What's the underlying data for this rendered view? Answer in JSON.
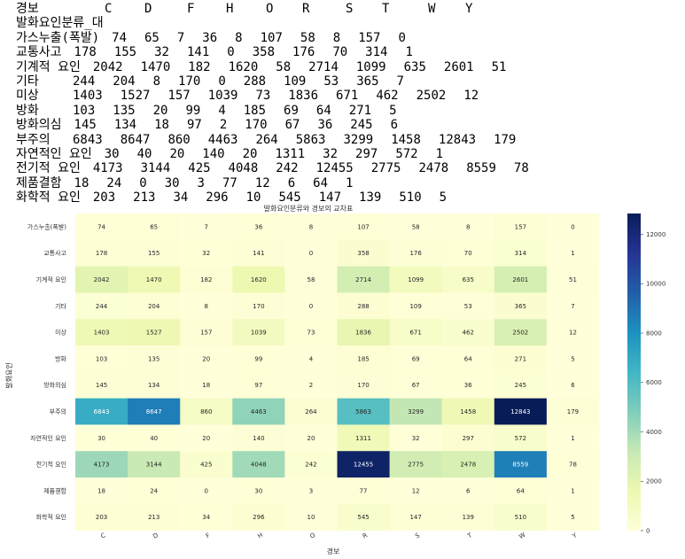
{
  "crosstab_output": {
    "header": [
      "경보",
      "C",
      "D",
      "F",
      "H",
      "O",
      "R",
      "S",
      "T",
      "W",
      "Y"
    ],
    "index_name": "발화요인분류_대",
    "rows": [
      {
        "label": "가스누출(폭발)",
        "values": [
          "74",
          "65",
          "7",
          "36",
          "8",
          "107",
          "58",
          "8",
          "157",
          "0"
        ]
      },
      {
        "label": "교통사고",
        "values": [
          "178",
          "155",
          "32",
          "141",
          "0",
          "358",
          "176",
          "70",
          "314",
          "1"
        ]
      },
      {
        "label": "기계적 요인",
        "values": [
          "2042",
          "1470",
          "182",
          "1620",
          "58",
          "2714",
          "1099",
          "635",
          "2601",
          "51"
        ]
      },
      {
        "label": "기타",
        "values": [
          "244",
          "204",
          "8",
          "170",
          "0",
          "288",
          "109",
          "53",
          "365",
          "7"
        ]
      },
      {
        "label": "미상",
        "values": [
          "1403",
          "1527",
          "157",
          "1039",
          "73",
          "1836",
          "671",
          "462",
          "2502",
          "12"
        ]
      },
      {
        "label": "방화",
        "values": [
          "103",
          "135",
          "20",
          "99",
          "4",
          "185",
          "69",
          "64",
          "271",
          "5"
        ]
      },
      {
        "label": "방화의심",
        "values": [
          "145",
          "134",
          "18",
          "97",
          "2",
          "170",
          "67",
          "36",
          "245",
          "6"
        ]
      },
      {
        "label": "부주의",
        "values": [
          "6843",
          "8647",
          "860",
          "4463",
          "264",
          "5863",
          "3299",
          "1458",
          "12843",
          "179"
        ]
      },
      {
        "label": "자연적인 요인",
        "values": [
          "30",
          "40",
          "20",
          "140",
          "20",
          "1311",
          "32",
          "297",
          "572",
          "1"
        ]
      },
      {
        "label": "전기적 요인",
        "values": [
          "4173",
          "3144",
          "425",
          "4048",
          "242",
          "12455",
          "2775",
          "2478",
          "8559",
          "78"
        ]
      },
      {
        "label": "제품결함",
        "values": [
          "18",
          "24",
          "0",
          "30",
          "3",
          "77",
          "12",
          "6",
          "64",
          "1"
        ]
      },
      {
        "label": "화학적 요인",
        "values": [
          "203",
          "213",
          "34",
          "296",
          "10",
          "545",
          "147",
          "139",
          "510",
          "5"
        ]
      }
    ]
  },
  "chart_data": {
    "type": "heatmap",
    "title": "발화요인분류와 경보의 교차표",
    "xlabel": "경보",
    "ylabel": "발화요인",
    "x": [
      "C",
      "D",
      "F",
      "H",
      "O",
      "R",
      "S",
      "T",
      "W",
      "Y"
    ],
    "y": [
      "가스누출(폭발)",
      "교통사고",
      "기계적 요인",
      "기타",
      "미상",
      "방화",
      "방화의심",
      "부주의",
      "자연적인 요인",
      "전기적 요인",
      "제품결함",
      "화학적 요인"
    ],
    "values": [
      [
        74,
        65,
        7,
        36,
        8,
        107,
        58,
        8,
        157,
        0
      ],
      [
        178,
        155,
        32,
        141,
        0,
        358,
        176,
        70,
        314,
        1
      ],
      [
        2042,
        1470,
        182,
        1620,
        58,
        2714,
        1099,
        635,
        2601,
        51
      ],
      [
        244,
        204,
        8,
        170,
        0,
        288,
        109,
        53,
        365,
        7
      ],
      [
        1403,
        1527,
        157,
        1039,
        73,
        1836,
        671,
        462,
        2502,
        12
      ],
      [
        103,
        135,
        20,
        99,
        4,
        185,
        69,
        64,
        271,
        5
      ],
      [
        145,
        134,
        18,
        97,
        2,
        170,
        67,
        36,
        245,
        6
      ],
      [
        6843,
        8647,
        860,
        4463,
        264,
        5863,
        3299,
        1458,
        12843,
        179
      ],
      [
        30,
        40,
        20,
        140,
        20,
        1311,
        32,
        297,
        572,
        1
      ],
      [
        4173,
        3144,
        425,
        4048,
        242,
        12455,
        2775,
        2478,
        8559,
        78
      ],
      [
        18,
        24,
        0,
        30,
        3,
        77,
        12,
        6,
        64,
        1
      ],
      [
        203,
        213,
        34,
        296,
        10,
        545,
        147,
        139,
        510,
        5
      ]
    ],
    "colormap": "YlGnBu",
    "colorbar": {
      "ticks": [
        0,
        2000,
        4000,
        6000,
        8000,
        10000,
        12000
      ],
      "range": [
        0,
        12843
      ]
    },
    "annotated": true,
    "grid": false
  }
}
